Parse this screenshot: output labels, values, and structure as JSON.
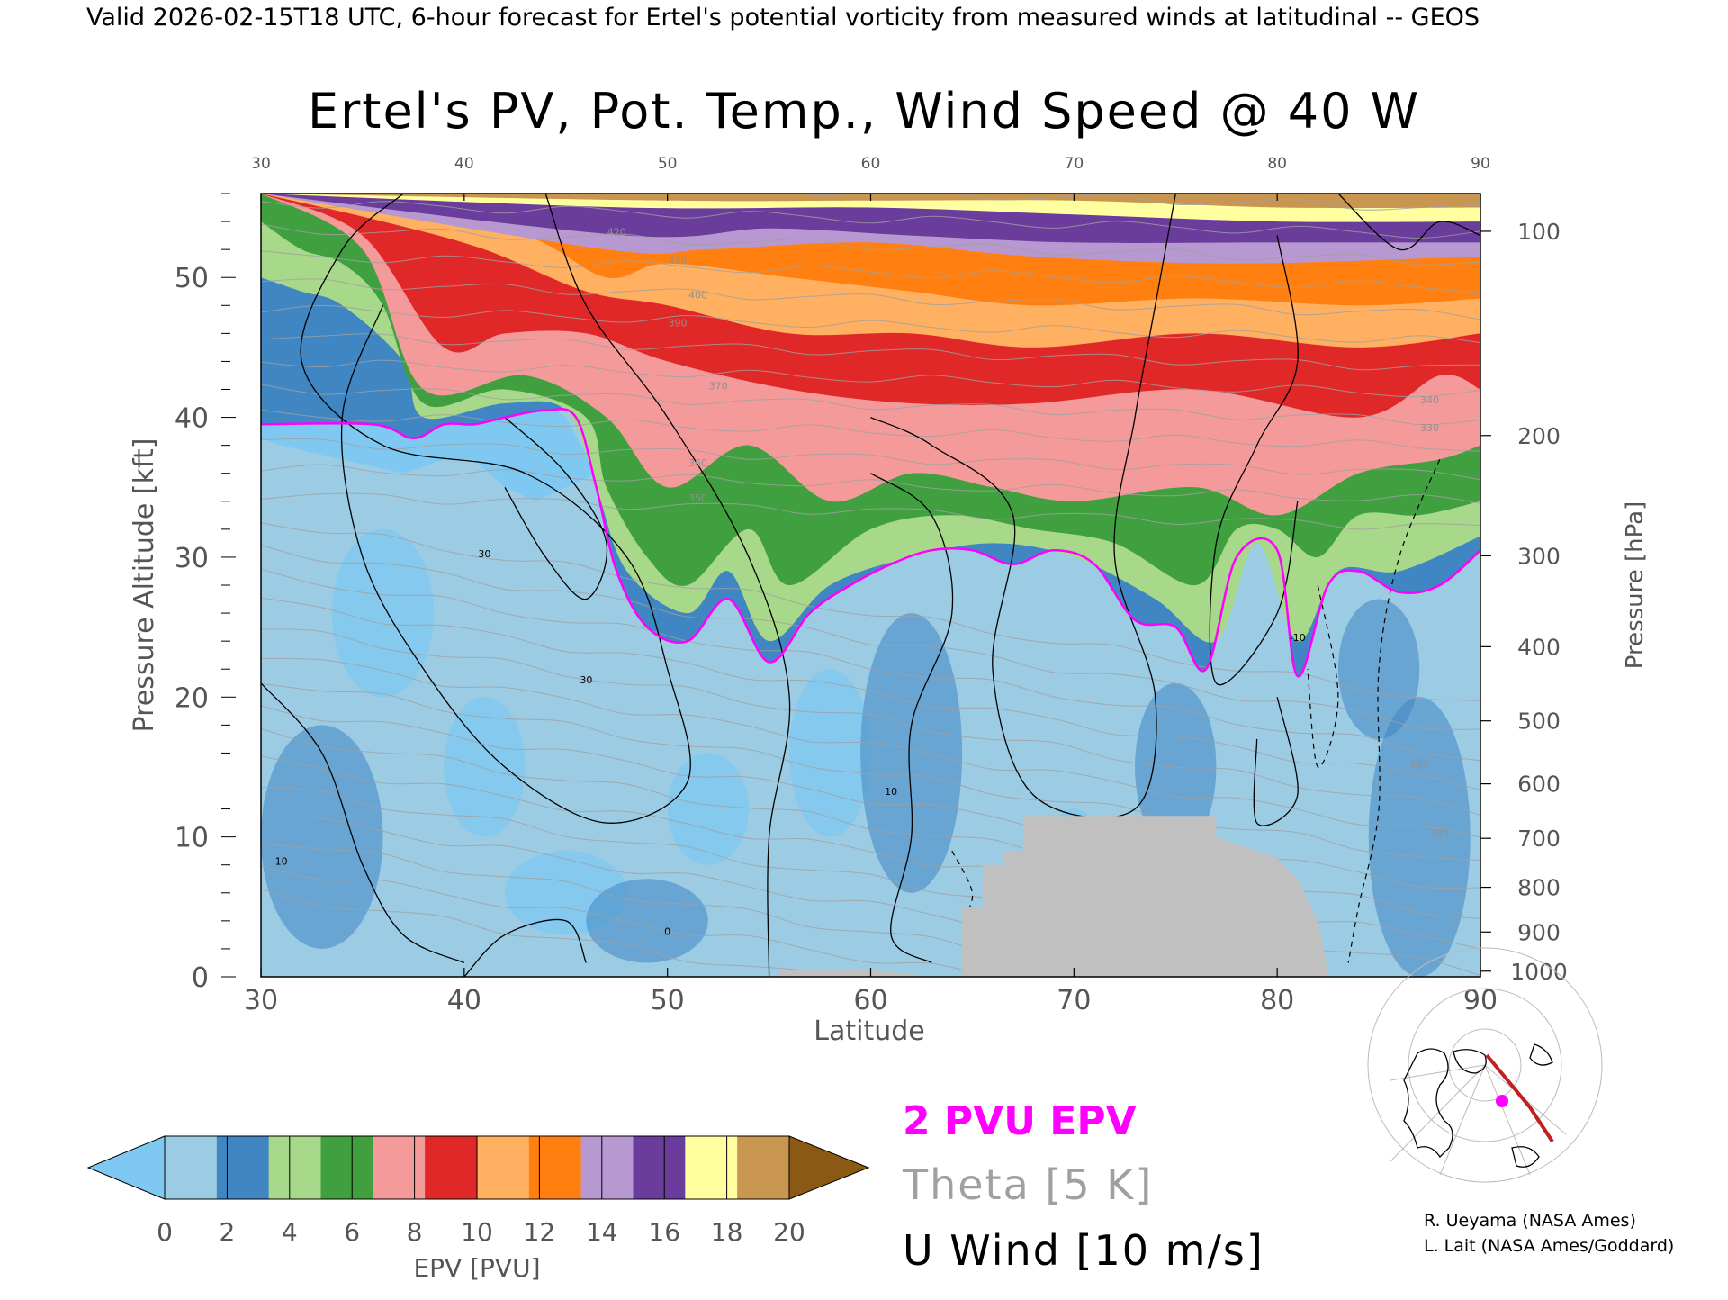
{
  "header": {
    "valid_line": "Valid 2026-02-15T18 UTC, 6-hour forecast for Ertel's potential vorticity from measured winds at latitudinal -- GEOS"
  },
  "chart_data": {
    "type": "heatmap",
    "title": "Ertel's PV, Pot. Temp., Wind Speed @ 40 W",
    "xlabel": "Latitude",
    "ylabel": "Pressure Altitude [kft]",
    "y2label": "Pressure [hPa]",
    "xlim": [
      30,
      90
    ],
    "ylim": [
      0,
      56
    ],
    "x_ticks": [
      30,
      40,
      50,
      60,
      70,
      80,
      90
    ],
    "y_ticks": [
      0,
      10,
      20,
      30,
      40,
      50
    ],
    "pressure_ticks": [
      {
        "label": "100",
        "kft": 53.3
      },
      {
        "label": "200",
        "kft": 38.7
      },
      {
        "label": "300",
        "kft": 30.1
      },
      {
        "label": "400",
        "kft": 23.6
      },
      {
        "label": "500",
        "kft": 18.3
      },
      {
        "label": "600",
        "kft": 13.8
      },
      {
        "label": "700",
        "kft": 9.9
      },
      {
        "label": "800",
        "kft": 6.4
      },
      {
        "label": "900",
        "kft": 3.2
      },
      {
        "label": "1000",
        "kft": 0.4
      }
    ],
    "colorbar": {
      "label": "EPV [PVU]",
      "ticks": [
        0,
        2,
        4,
        6,
        8,
        10,
        12,
        14,
        16,
        18,
        20
      ],
      "under_color": "#7ec8f2",
      "over_color": "#8a5a14",
      "colors": [
        "#9ccbe4",
        "#3f86c2",
        "#a8d88a",
        "#40a040",
        "#f49a9a",
        "#e02828",
        "#ffb060",
        "#ff8010",
        "#b898d0",
        "#6a3c9c",
        "#ffffa0",
        "#c89650"
      ]
    },
    "tropopause_2pvu": [
      {
        "lat": 30.0,
        "kft": 39.5
      },
      {
        "lat": 35.5,
        "kft": 39.5
      },
      {
        "lat": 37.5,
        "kft": 38.5
      },
      {
        "lat": 39.0,
        "kft": 39.5
      },
      {
        "lat": 40.5,
        "kft": 39.5
      },
      {
        "lat": 42.0,
        "kft": 40.0
      },
      {
        "lat": 44.0,
        "kft": 40.5
      },
      {
        "lat": 45.5,
        "kft": 40.0
      },
      {
        "lat": 46.5,
        "kft": 35.0
      },
      {
        "lat": 47.5,
        "kft": 29.0
      },
      {
        "lat": 49.0,
        "kft": 25.0
      },
      {
        "lat": 51.0,
        "kft": 24.0
      },
      {
        "lat": 53.0,
        "kft": 27.0
      },
      {
        "lat": 55.0,
        "kft": 22.5
      },
      {
        "lat": 57.0,
        "kft": 26.0
      },
      {
        "lat": 59.0,
        "kft": 28.0
      },
      {
        "lat": 61.0,
        "kft": 29.5
      },
      {
        "lat": 63.0,
        "kft": 30.5
      },
      {
        "lat": 65.0,
        "kft": 30.5
      },
      {
        "lat": 67.0,
        "kft": 29.5
      },
      {
        "lat": 69.0,
        "kft": 30.5
      },
      {
        "lat": 71.0,
        "kft": 29.5
      },
      {
        "lat": 73.0,
        "kft": 25.5
      },
      {
        "lat": 75.0,
        "kft": 25.0
      },
      {
        "lat": 76.5,
        "kft": 22.0
      },
      {
        "lat": 78.0,
        "kft": 30.0
      },
      {
        "lat": 80.0,
        "kft": 30.5
      },
      {
        "lat": 81.0,
        "kft": 21.5
      },
      {
        "lat": 82.5,
        "kft": 28.0
      },
      {
        "lat": 84.0,
        "kft": 29.0
      },
      {
        "lat": 86.0,
        "kft": 27.5
      },
      {
        "lat": 88.0,
        "kft": 28.0
      },
      {
        "lat": 90.0,
        "kft": 30.5
      }
    ],
    "pv_layers": [
      {
        "pvu": 20,
        "color": "#c89650",
        "top": 57,
        "points": [
          [
            30,
            56
          ],
          [
            50,
            55.5
          ],
          [
            60,
            55.5
          ],
          [
            70,
            55.5
          ],
          [
            80,
            55
          ],
          [
            90,
            55
          ]
        ]
      },
      {
        "pvu": 18,
        "color": "#ffffa0",
        "top": 57,
        "points": [
          [
            30,
            56
          ],
          [
            48,
            55
          ],
          [
            60,
            55
          ],
          [
            70,
            54.5
          ],
          [
            80,
            54
          ],
          [
            90,
            54
          ]
        ]
      },
      {
        "pvu": 16,
        "color": "#6a3c9c",
        "top": 57,
        "points": [
          [
            30,
            56
          ],
          [
            48,
            53
          ],
          [
            55,
            53.5
          ],
          [
            62,
            53
          ],
          [
            70,
            52.5
          ],
          [
            80,
            52.5
          ],
          [
            90,
            52.5
          ]
        ]
      },
      {
        "pvu": 14,
        "color": "#b898d0",
        "top": 57,
        "points": [
          [
            30,
            56
          ],
          [
            47,
            52
          ],
          [
            52,
            52
          ],
          [
            60,
            52.5
          ],
          [
            68,
            51.5
          ],
          [
            78,
            51
          ],
          [
            90,
            51.5
          ]
        ]
      },
      {
        "pvu": 12,
        "color": "#ff8010",
        "top": 57,
        "points": [
          [
            30,
            56
          ],
          [
            36,
            55
          ],
          [
            43,
            53
          ],
          [
            47,
            50
          ],
          [
            50,
            51
          ],
          [
            56,
            50
          ],
          [
            62,
            49
          ],
          [
            68,
            48
          ],
          [
            76,
            48.5
          ],
          [
            84,
            48
          ],
          [
            90,
            48.5
          ]
        ]
      },
      {
        "pvu": 10,
        "color": "#ffb060",
        "top": 57,
        "points": [
          [
            30,
            56
          ],
          [
            36,
            54
          ],
          [
            41,
            52
          ],
          [
            46,
            49
          ],
          [
            50,
            48
          ],
          [
            56,
            46
          ],
          [
            62,
            46
          ],
          [
            68,
            45
          ],
          [
            76,
            46
          ],
          [
            84,
            45
          ],
          [
            90,
            46
          ]
        ]
      },
      {
        "pvu": 8,
        "color": "#e02828",
        "top": 57,
        "points": [
          [
            30,
            56
          ],
          [
            35,
            53
          ],
          [
            39,
            45
          ],
          [
            42,
            46
          ],
          [
            46,
            46
          ],
          [
            50,
            44
          ],
          [
            56,
            42
          ],
          [
            62,
            41
          ],
          [
            68,
            41
          ],
          [
            76,
            42
          ],
          [
            84,
            40
          ],
          [
            88,
            43
          ],
          [
            90,
            42
          ]
        ]
      },
      {
        "pvu": 6,
        "color": "#f49a9a",
        "top": 57,
        "points": [
          [
            30,
            56
          ],
          [
            35,
            52
          ],
          [
            38,
            42
          ],
          [
            43,
            43
          ],
          [
            47,
            40
          ],
          [
            50,
            35
          ],
          [
            54,
            38
          ],
          [
            58,
            34
          ],
          [
            62,
            36
          ],
          [
            66,
            35
          ],
          [
            70,
            34
          ],
          [
            76,
            35
          ],
          [
            80,
            33
          ],
          [
            84,
            36
          ],
          [
            88,
            37
          ],
          [
            90,
            38
          ]
        ]
      },
      {
        "pvu": 4,
        "color": "#40a040",
        "top": 57,
        "points": [
          [
            30,
            54
          ],
          [
            32,
            52
          ],
          [
            34,
            51
          ],
          [
            36,
            48
          ],
          [
            38,
            41
          ],
          [
            42,
            42
          ],
          [
            46,
            40
          ],
          [
            47,
            35
          ],
          [
            49,
            30
          ],
          [
            51,
            28
          ],
          [
            54,
            32
          ],
          [
            56,
            28
          ],
          [
            60,
            32
          ],
          [
            64,
            33
          ],
          [
            68,
            32
          ],
          [
            72,
            31
          ],
          [
            76,
            28
          ],
          [
            78,
            32
          ],
          [
            80,
            32
          ],
          [
            82,
            30
          ],
          [
            84,
            33
          ],
          [
            87,
            33
          ],
          [
            90,
            34
          ]
        ]
      },
      {
        "pvu": 3,
        "color": "#a8d88a",
        "top": 57,
        "points": [
          [
            30,
            50
          ],
          [
            32,
            49
          ],
          [
            34,
            48
          ],
          [
            37,
            44
          ],
          [
            38,
            40
          ],
          [
            42,
            41
          ],
          [
            45,
            40.5
          ],
          [
            46.5,
            35
          ],
          [
            48,
            29
          ],
          [
            51,
            26
          ],
          [
            53,
            29
          ],
          [
            55,
            24
          ],
          [
            58,
            28
          ],
          [
            62,
            30
          ],
          [
            66,
            31
          ],
          [
            70,
            30
          ],
          [
            74,
            27
          ],
          [
            77,
            24
          ],
          [
            79,
            31
          ],
          [
            81,
            24
          ],
          [
            83,
            29
          ],
          [
            86,
            29
          ],
          [
            90,
            31.5
          ]
        ]
      }
    ],
    "under_region": [
      [
        30,
        56
      ],
      [
        30,
        40
      ],
      [
        35.5,
        40
      ],
      [
        38,
        39
      ],
      [
        39,
        40
      ],
      [
        42,
        40
      ],
      [
        44,
        41
      ],
      [
        45,
        40
      ],
      [
        46.5,
        36
      ],
      [
        45,
        35
      ],
      [
        43.5,
        34
      ],
      [
        42,
        35
      ],
      [
        40.5,
        37
      ],
      [
        39,
        37
      ],
      [
        37,
        36
      ],
      [
        34,
        37
      ],
      [
        31,
        38
      ],
      [
        30,
        38.5
      ]
    ],
    "terrain_mask": [
      [
        55.5,
        0
      ],
      [
        55.5,
        0.5
      ],
      [
        60,
        0.5
      ],
      [
        63,
        0
      ],
      [
        64.5,
        0
      ],
      [
        64.5,
        5
      ],
      [
        65.5,
        5
      ],
      [
        65.5,
        8
      ],
      [
        66.5,
        8
      ],
      [
        66.5,
        9
      ],
      [
        67.5,
        9
      ],
      [
        67.5,
        11.5
      ],
      [
        77.0,
        11.5
      ],
      [
        77.0,
        10
      ],
      [
        79,
        9
      ],
      [
        80,
        8.5
      ],
      [
        81,
        7
      ],
      [
        82,
        4
      ],
      [
        82.3,
        2
      ],
      [
        82.5,
        0
      ]
    ],
    "theta_labels": [
      "420",
      "410",
      "400",
      "390",
      "370",
      "360",
      "350",
      "340",
      "330",
      "290",
      "280"
    ],
    "wind_labels": [
      "10",
      "30",
      "30",
      "0",
      "-10",
      "10"
    ],
    "terrain_color": "#c0c0c0",
    "legend": {
      "pv_line_label": "2 PVU EPV",
      "pv_line_color": "#ff00ff",
      "theta_label": "Theta [5 K]",
      "theta_color": "#a0a0a0",
      "wind_label": "U Wind [10 m/s]",
      "wind_color": "#000000"
    }
  },
  "credits": {
    "line1": "R. Ueyama (NASA Ames)",
    "line2": "L. Lait (NASA Ames/Goddard)"
  },
  "inset_map": {
    "track_color": "#c02020",
    "marker_color": "#ff00ff"
  }
}
